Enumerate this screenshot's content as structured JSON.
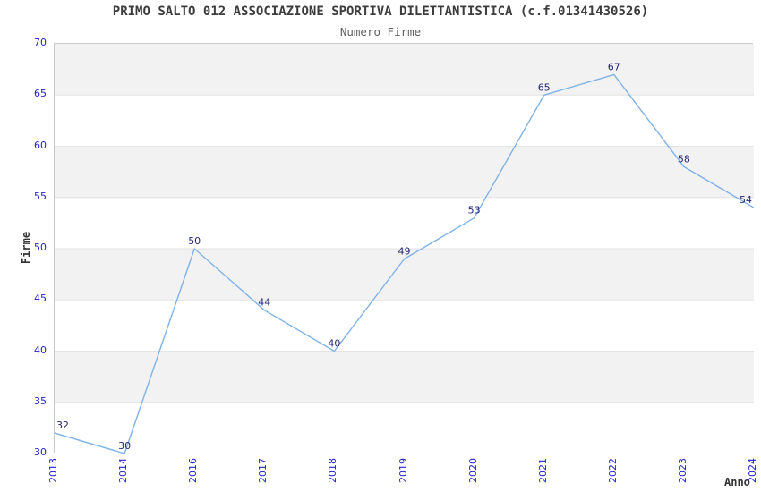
{
  "header": {
    "title": "PRIMO SALTO 012 ASSOCIAZIONE SPORTIVA DILETTANTISTICA (c.f.01341430526)",
    "subtitle": "Numero Firme"
  },
  "chart_data": {
    "type": "line",
    "title": "PRIMO SALTO 012 ASSOCIAZIONE SPORTIVA DILETTANTISTICA (c.f.01341430526)",
    "subtitle": "Numero Firme",
    "xlabel": "Anno",
    "ylabel": "Firme",
    "categories": [
      "2013",
      "2014",
      "2016",
      "2017",
      "2018",
      "2019",
      "2020",
      "2021",
      "2022",
      "2023",
      "2024"
    ],
    "values": [
      32,
      30,
      50,
      44,
      40,
      49,
      53,
      65,
      67,
      58,
      54
    ],
    "series": [
      {
        "name": "Numero Firme",
        "values": [
          32,
          30,
          50,
          44,
          40,
          49,
          53,
          65,
          67,
          58,
          54
        ]
      }
    ],
    "ylim": [
      30,
      70
    ],
    "ytick_step": 5,
    "yticks": [
      30,
      35,
      40,
      45,
      50,
      55,
      60,
      65,
      70
    ],
    "grid": "horizontal-alternating-bands",
    "legend_position": "none",
    "data_labels_visible": true,
    "xtick_rotation_deg": -90
  },
  "colors": {
    "line": "#7eb2ea",
    "data_label": "#26267a",
    "tick_label": "#2323cf",
    "axis_title": "#333333",
    "chart_title": "#3c3c3c",
    "band_gray": "#f2f2f2",
    "band_white": "#ffffff",
    "gridline": "#e3e3e3",
    "plot_border": "#c9c9c9",
    "background": "#ffffff"
  }
}
